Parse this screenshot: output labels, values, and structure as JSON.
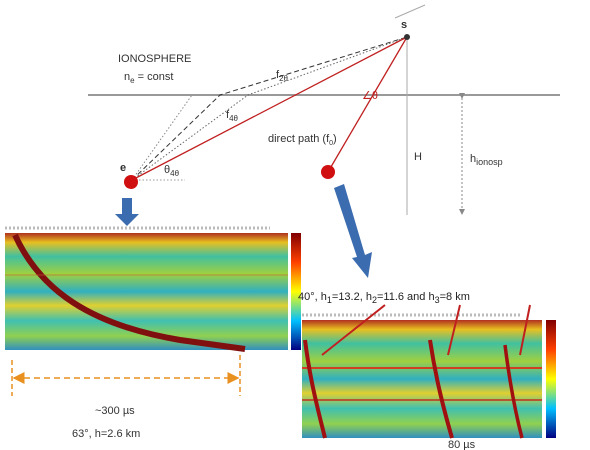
{
  "diagram": {
    "ionosphere": "IONOSPHERE",
    "density": {
      "main": "n",
      "sub": "e",
      "rest": " = const"
    },
    "f2": {
      "main": "f",
      "sub": "2θ"
    },
    "f4": {
      "main": "f",
      "sub": "4θ"
    },
    "direct_path": {
      "main": "direct path (f",
      "sub": "0",
      "rest": ")"
    },
    "angle": "∠θ",
    "theta4": {
      "main": "θ",
      "sub": "4θ"
    },
    "point_e": "e",
    "point_s": "s",
    "height": "H",
    "h_ionosp": {
      "main": "h",
      "sub": "ionosp"
    },
    "left_duration": "~300 µs",
    "left_caption": "63°, h=2.6 km",
    "right_caption": {
      "a": "40°, h",
      "s1": "1",
      "b": "=13.2, h",
      "s2": "2",
      "c": "=11.6 and h",
      "s3": "3",
      "d": "=8 km"
    },
    "right_duration": "80 µs"
  }
}
